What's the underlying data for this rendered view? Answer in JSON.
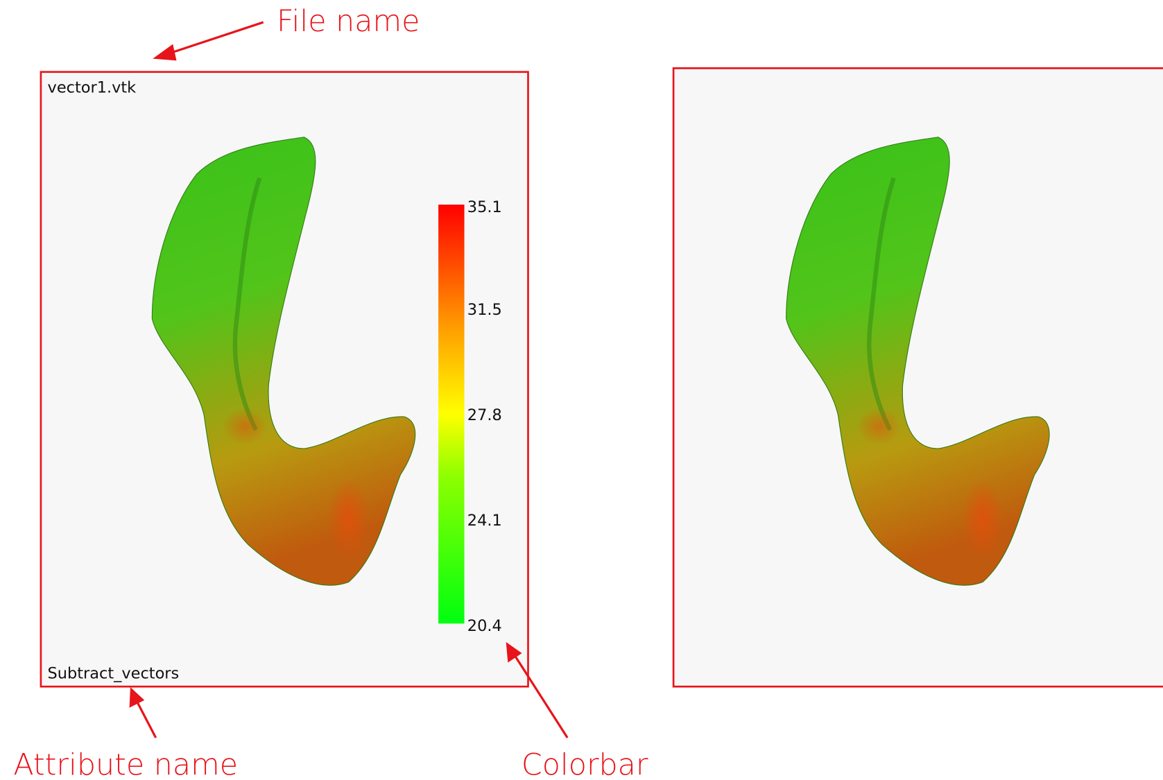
{
  "annotations": {
    "file_name": "File name",
    "attribute_name": "Attribute name",
    "colorbar": "Colorbar"
  },
  "left_view": {
    "file_name": "vector1.vtk",
    "attribute_name": "Subtract_vectors",
    "colorbar": {
      "range": [
        20.4,
        35.1
      ],
      "ticks": [
        35.1,
        31.5,
        27.8,
        24.1,
        20.4
      ]
    }
  }
}
